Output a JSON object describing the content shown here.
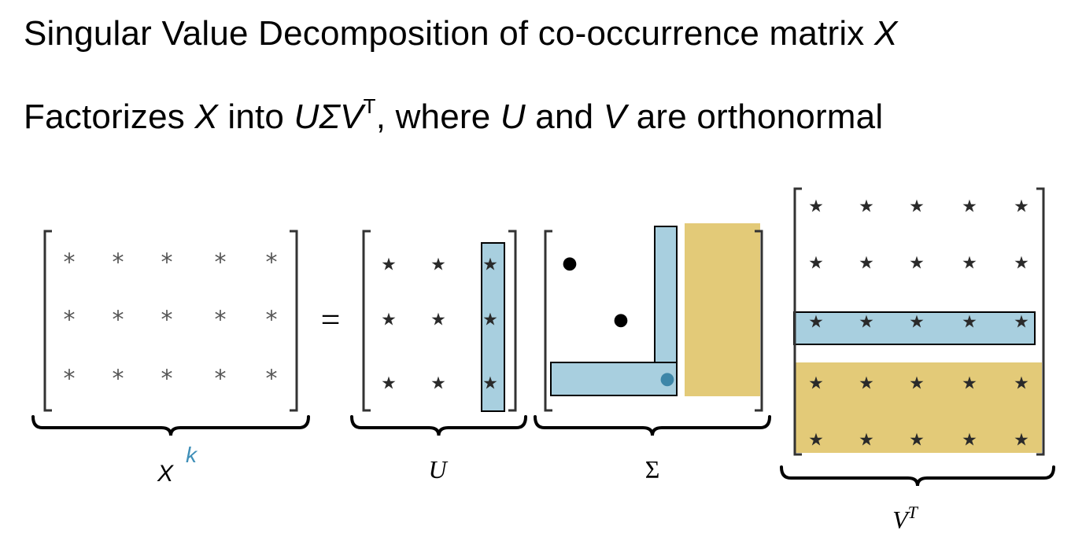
{
  "title": {
    "text": "Singular Value Decomposition of co-occurrence matrix ",
    "var": "X"
  },
  "subtitle": {
    "p1": "Factorizes ",
    "x": "X",
    "p2": " into ",
    "usv": "UΣV",
    "sup": "T",
    "p3": ", where ",
    "u": "U",
    "p4": " and ",
    "v": "V",
    "p5": " are orthonormal"
  },
  "diagram": {
    "equals": "=",
    "x_entry": "*",
    "star_entry": "★",
    "diag_entry": "●",
    "labels": {
      "x": "X",
      "k": "k",
      "u": "U",
      "sigma": "Σ",
      "vt_base": "V",
      "vt_sup": "T"
    },
    "colors": {
      "highlight_blue": "#a8cfdf",
      "highlight_gold": "#e3ca78",
      "k_label": "#3f8fb8"
    }
  }
}
